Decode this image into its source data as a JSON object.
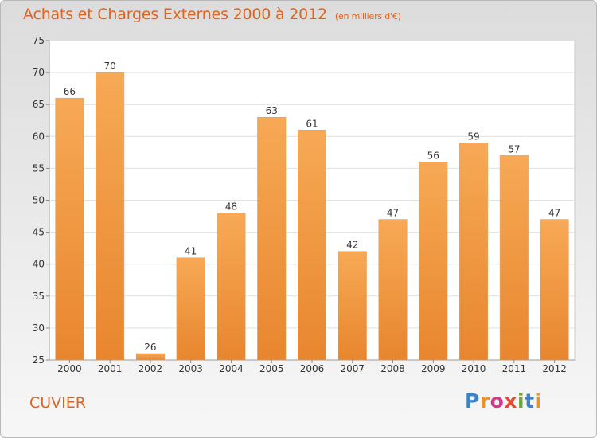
{
  "chart_data": {
    "type": "bar",
    "title": "Achats et Charges Externes 2000 à 2012",
    "unit_note": "(en milliers d'€)",
    "categories": [
      "2000",
      "2001",
      "2002",
      "2003",
      "2004",
      "2005",
      "2006",
      "2007",
      "2008",
      "2009",
      "2010",
      "2011",
      "2012"
    ],
    "values": [
      66,
      70,
      26,
      41,
      48,
      63,
      61,
      42,
      47,
      56,
      59,
      57,
      47
    ],
    "ylim": [
      25,
      75
    ],
    "yticks": [
      25,
      30,
      35,
      40,
      45,
      50,
      55,
      60,
      65,
      70,
      75
    ],
    "grid": true,
    "bar_color": "#e8862f",
    "bar_color_light": "#f7a955"
  },
  "footer": {
    "commune": "CUVIER",
    "logo_text": "Proxiti"
  }
}
